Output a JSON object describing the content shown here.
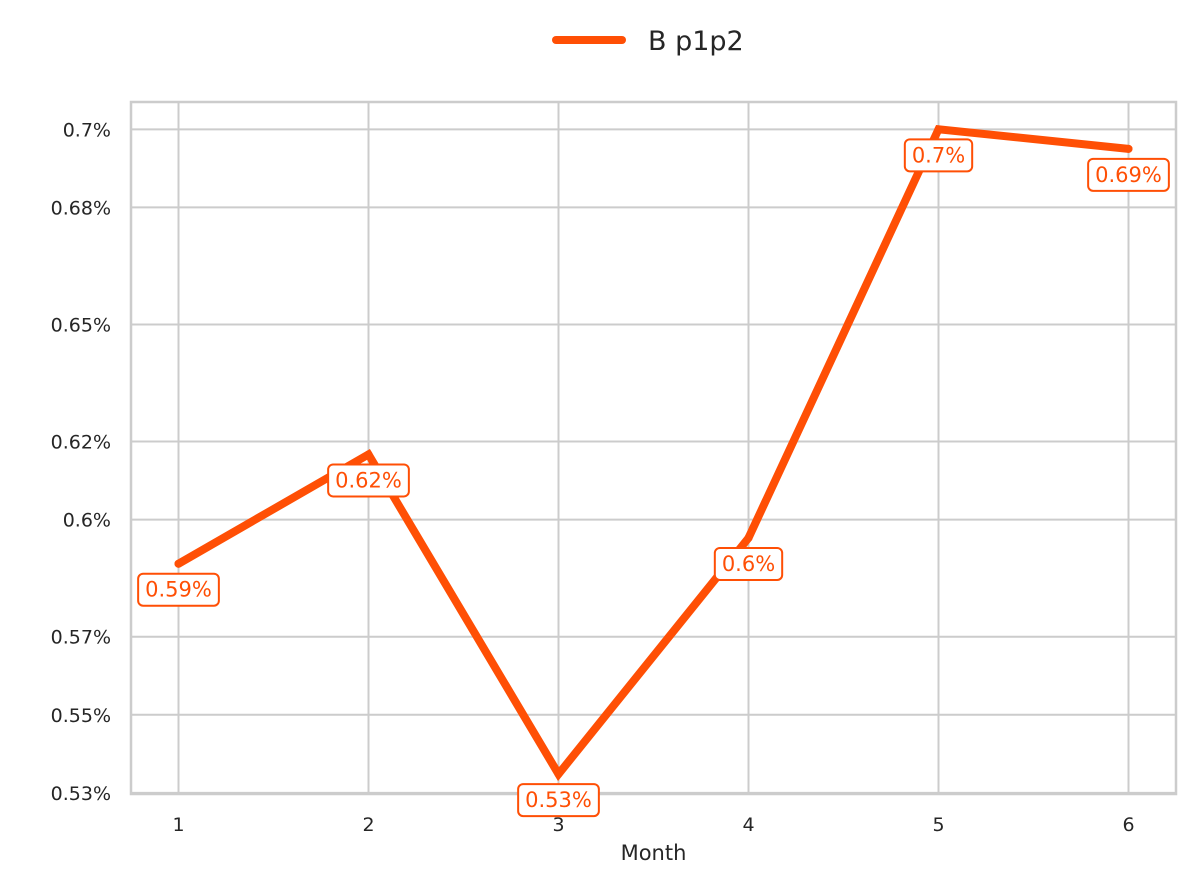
{
  "chart_data": {
    "type": "line",
    "x": [
      1,
      2,
      3,
      4,
      5,
      6
    ],
    "series": [
      {
        "name": "B p1p2",
        "color": "#FF4F05",
        "values": [
          0.5887,
          0.6167,
          0.5348,
          0.5953,
          0.7,
          0.695
        ],
        "labels": [
          "0.59%",
          "0.62%",
          "0.53%",
          "0.6%",
          "0.7%",
          "0.69%"
        ]
      }
    ],
    "xlabel": "Month",
    "ylabel": "",
    "xticks": [
      "1",
      "2",
      "3",
      "4",
      "5",
      "6"
    ],
    "yticks": [
      {
        "value": 0.53,
        "label": "0.53%"
      },
      {
        "value": 0.55,
        "label": "0.55%"
      },
      {
        "value": 0.57,
        "label": "0.57%"
      },
      {
        "value": 0.6,
        "label": "0.6%"
      },
      {
        "value": 0.62,
        "label": "0.62%"
      },
      {
        "value": 0.65,
        "label": "0.65%"
      },
      {
        "value": 0.68,
        "label": "0.68%"
      },
      {
        "value": 0.7,
        "label": "0.7%"
      }
    ],
    "xlim": [
      0.75,
      6.25
    ],
    "ylim": [
      0.5297,
      0.707
    ],
    "grid": true,
    "legend_position": "top-center",
    "colors": {
      "line": "#FF4F05",
      "grid": "#CCCCCC",
      "frame": "#CCCCCC",
      "text": "#262626"
    }
  }
}
